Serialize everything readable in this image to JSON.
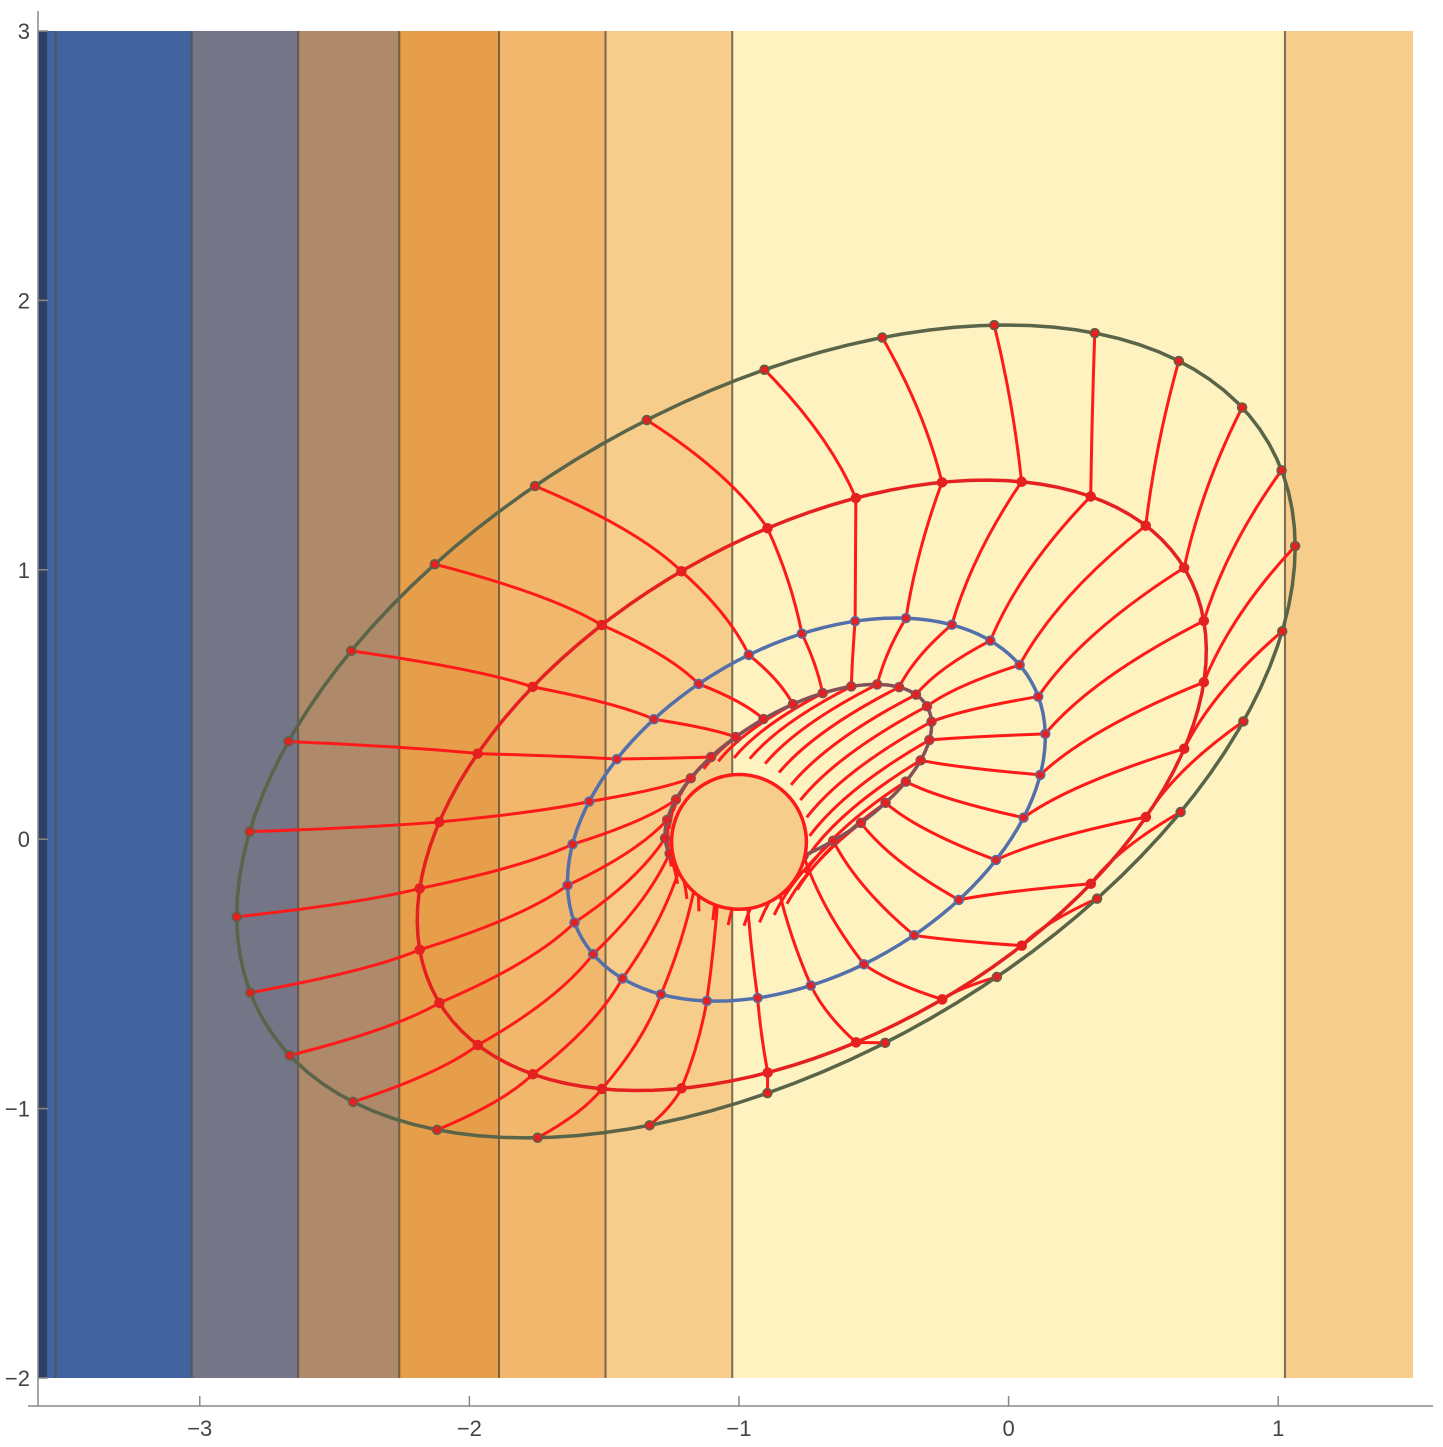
{
  "chart_data": {
    "type": "contour",
    "title": "",
    "xlabel": "",
    "ylabel": "",
    "xlim": [
      -3.6,
      1.5
    ],
    "ylim": [
      -2.0,
      3.0
    ],
    "x_ticks": [
      -3,
      -2,
      -1,
      0,
      1
    ],
    "x_tick_labels": [
      "−3",
      "−2",
      "−1",
      "0",
      "1"
    ],
    "y_ticks": [
      -2,
      -1,
      0,
      1,
      2,
      3
    ],
    "y_tick_labels": [
      "−2",
      "−1",
      "0",
      "1",
      "2",
      "3"
    ],
    "grid": false,
    "legend": "none",
    "background_bands": [
      {
        "x_from": -3.6,
        "x_to": -3.565,
        "color": "#2e3f66"
      },
      {
        "x_from": -3.565,
        "x_to": -3.03,
        "color": "#4163a0"
      },
      {
        "x_from": -3.03,
        "x_to": -2.635,
        "color": "#747587"
      },
      {
        "x_from": -2.635,
        "x_to": -2.26,
        "color": "#ae8a6b"
      },
      {
        "x_from": -2.26,
        "x_to": -1.89,
        "color": "#e69e4a"
      },
      {
        "x_from": -1.89,
        "x_to": -1.495,
        "color": "#f0b76d"
      },
      {
        "x_from": -1.495,
        "x_to": -1.025,
        "color": "#f6cd8b"
      },
      {
        "x_from": -1.025,
        "x_to": 1.025,
        "color": "#fef2c0"
      },
      {
        "x_from": 1.025,
        "x_to": 1.5,
        "color": "#f6cd8b"
      }
    ],
    "contour_lines_x": [
      -3.535,
      -3.03,
      -2.635,
      -2.26,
      -1.89,
      -1.495,
      -1.025,
      1.025
    ],
    "orbit_levels": [
      {
        "name_hidden": true,
        "color": "#865058",
        "center": [
          -0.78,
          0.22
        ],
        "rx": 0.55,
        "ry": 0.42
      },
      {
        "name_hidden": true,
        "color": "#5470ab",
        "center": [
          -0.75,
          0.11
        ],
        "rx": 0.96,
        "ry": 0.98
      },
      {
        "name_hidden": true,
        "color": "#e52020",
        "center": [
          -0.73,
          0.2
        ],
        "rx": 1.6,
        "ry": 1.5
      },
      {
        "name_hidden": true,
        "color": "#5a6448",
        "center": [
          -0.9,
          0.4
        ],
        "rx": 2.15,
        "ry": 1.98
      }
    ],
    "inner_ellipse": {
      "center": [
        -1.0,
        -0.01
      ],
      "rx": 0.25,
      "ry": 0.25,
      "fill": "#f6cd8b"
    },
    "spokes": 28,
    "colors": {
      "spokes": "#ff1a1a",
      "outer_curve": "#5a6448",
      "middle_curve": "#5470ab",
      "inner_curve": "#865058",
      "markers": "#e52020",
      "axis": "#888888"
    }
  }
}
